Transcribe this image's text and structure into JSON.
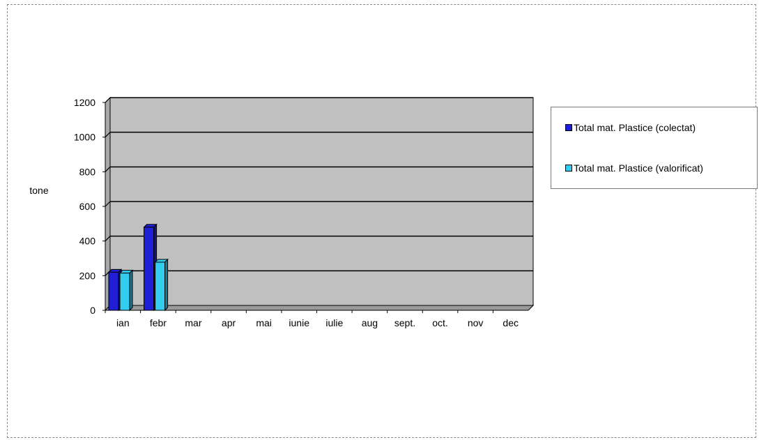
{
  "chart_data": {
    "type": "bar",
    "title": "",
    "xlabel": "",
    "ylabel": "tone",
    "categories": [
      "ian",
      "febr",
      "mar",
      "apr",
      "mai",
      "iunie",
      "iulie",
      "aug",
      "sept.",
      "oct.",
      "nov",
      "dec"
    ],
    "series": [
      {
        "name": "Total mat. Plastice (colectat)",
        "values": [
          220,
          480,
          null,
          null,
          null,
          null,
          null,
          null,
          null,
          null,
          null,
          null
        ],
        "color": "#1f1fd8"
      },
      {
        "name": "Total mat. Plastice (valorificat)",
        "values": [
          215,
          278,
          null,
          null,
          null,
          null,
          null,
          null,
          null,
          null,
          null,
          null
        ],
        "color": "#33ccee"
      }
    ],
    "ylim": [
      0,
      1200
    ],
    "yticks": [
      0,
      200,
      400,
      600,
      800,
      1000,
      1200
    ],
    "grid": true,
    "legend_position": "right",
    "plot_background": "#c0c0c0"
  }
}
